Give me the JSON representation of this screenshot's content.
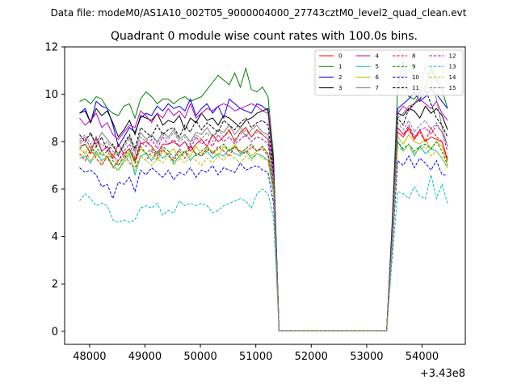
{
  "chart_data": {
    "type": "line",
    "suptitle": "Data file: modeM0/AS1A10_002T05_9000004000_27743cztM0_level2_quad_clean.evt",
    "title": "Quadrant 0 module wise count rates with 100.0s bins.",
    "xlabel": "",
    "ylabel": "",
    "x_offset_label": "+3.43e8",
    "xlim": [
      47550,
      54780
    ],
    "ylim": [
      -0.55,
      12.0
    ],
    "x_ticks": [
      48000,
      49000,
      50000,
      51000,
      52000,
      53000,
      54000
    ],
    "x_tick_labels": [
      "48000",
      "49000",
      "50000",
      "51000",
      "52000",
      "53000",
      "54000"
    ],
    "y_ticks": [
      0,
      2,
      4,
      6,
      8,
      10,
      12
    ],
    "y_tick_labels": [
      "0",
      "2",
      "4",
      "6",
      "8",
      "10",
      "12"
    ],
    "grid": false,
    "legend_position": "top-right",
    "legend_columns": 4,
    "segments": [
      {
        "x_start": 47820,
        "x_step": 100,
        "n": 37
      },
      {
        "x_start": 53360,
        "x_step": 100,
        "n": 12
      }
    ],
    "series": [
      {
        "name": "0",
        "color": "#ff0000",
        "dash": "solid",
        "seg1": [
          7.8,
          7.9,
          7.5,
          8.2,
          7.6,
          7.8,
          7.3,
          7.9,
          7.5,
          7.7,
          7.2,
          7.9,
          8.0,
          7.8,
          7.5,
          7.9,
          7.9,
          8.0,
          7.8,
          8.0,
          7.6,
          7.9,
          8.1,
          7.8,
          8.3,
          8.0,
          8.2,
          8.5,
          8.0,
          8.4,
          8.6,
          8.2,
          8.5,
          8.3,
          8.1,
          6.4,
          0.02
        ],
        "seg2": [
          0.02,
          3.9,
          8.4,
          8.2,
          8.6,
          8.1,
          8.5,
          8.0,
          8.2,
          8.1,
          8.0,
          7.2
        ]
      },
      {
        "name": "1",
        "color": "#008000",
        "dash": "solid",
        "seg1": [
          9.7,
          9.8,
          9.6,
          9.9,
          9.8,
          9.4,
          9.2,
          9.1,
          9.5,
          9.6,
          9.0,
          9.8,
          10.1,
          9.9,
          9.6,
          9.8,
          9.8,
          9.6,
          9.8,
          9.9,
          9.7,
          9.8,
          9.9,
          10.2,
          10.5,
          10.8,
          10.6,
          10.4,
          10.9,
          10.3,
          11.1,
          10.2,
          10.1,
          10.3,
          9.9,
          7.4,
          0.02
        ],
        "seg2": [
          0.02,
          4.6,
          10.3,
          11.4,
          9.9,
          9.8,
          10.1,
          10.3,
          11.1,
          10.6,
          10.2,
          9.4
        ]
      },
      {
        "name": "2",
        "color": "#0000ff",
        "dash": "solid",
        "seg1": [
          9.2,
          9.4,
          8.8,
          9.7,
          9.5,
          9.4,
          8.7,
          7.8,
          8.2,
          8.6,
          8.4,
          9.0,
          9.2,
          9.1,
          9.5,
          9.3,
          9.6,
          9.4,
          9.5,
          9.3,
          9.8,
          9.1,
          9.4,
          9.6,
          9.2,
          9.5,
          9.0,
          9.8,
          9.6,
          9.4,
          9.3,
          9.2,
          9.6,
          9.5,
          9.3,
          7.0,
          0.02
        ],
        "seg2": [
          0.02,
          4.3,
          9.4,
          9.6,
          9.8,
          10.1,
          9.7,
          9.9,
          10.2,
          10.0,
          9.7,
          9.4
        ]
      },
      {
        "name": "3",
        "color": "#000000",
        "dash": "solid",
        "seg1": [
          9.2,
          9.3,
          8.8,
          9.4,
          9.1,
          9.3,
          8.8,
          8.2,
          8.5,
          8.9,
          8.3,
          9.1,
          9.0,
          8.9,
          9.2,
          8.7,
          8.9,
          8.8,
          9.1,
          8.5,
          9.0,
          8.8,
          9.2,
          8.9,
          9.0,
          8.7,
          9.1,
          9.0,
          8.8,
          8.6,
          8.9,
          9.0,
          9.2,
          9.3,
          9.4,
          7.1,
          0.02
        ],
        "seg2": [
          0.02,
          4.3,
          9.2,
          9.1,
          9.4,
          9.3,
          9.0,
          9.5,
          9.2,
          9.4,
          9.1,
          8.5
        ]
      },
      {
        "name": "4",
        "color": "#bf00bf",
        "dash": "solid",
        "seg1": [
          9.0,
          8.7,
          8.9,
          9.2,
          8.6,
          8.8,
          8.3,
          8.1,
          8.4,
          8.7,
          8.6,
          9.3,
          9.1,
          8.8,
          9.2,
          9.0,
          9.4,
          9.1,
          9.3,
          9.0,
          9.6,
          9.0,
          9.2,
          9.4,
          9.3,
          9.5,
          9.6,
          9.5,
          9.3,
          9.4,
          9.5,
          9.6,
          9.5,
          9.3,
          9.2,
          6.9,
          0.02
        ],
        "seg2": [
          0.02,
          4.2,
          9.2,
          9.5,
          9.3,
          9.6,
          9.8,
          9.6,
          9.4,
          9.7,
          9.2,
          8.9
        ]
      },
      {
        "name": "5",
        "color": "#00bfa0",
        "dash": "solid",
        "seg1": [
          7.3,
          7.4,
          7.1,
          7.6,
          7.2,
          7.4,
          7.0,
          6.8,
          7.2,
          7.5,
          6.6,
          7.4,
          7.5,
          7.2,
          7.6,
          7.3,
          7.5,
          7.1,
          7.4,
          7.6,
          7.2,
          7.5,
          7.4,
          7.6,
          7.3,
          7.5,
          7.4,
          7.7,
          7.5,
          7.4,
          7.6,
          7.3,
          7.5,
          7.4,
          7.2,
          5.8,
          0.02
        ],
        "seg2": [
          0.02,
          3.6,
          8.0,
          7.6,
          7.9,
          7.4,
          7.8,
          7.5,
          7.7,
          7.6,
          7.3,
          6.9
        ]
      },
      {
        "name": "6",
        "color": "#bfbf00",
        "dash": "solid",
        "seg1": [
          7.7,
          7.5,
          7.9,
          7.4,
          7.6,
          7.3,
          7.5,
          7.0,
          7.3,
          7.6,
          7.1,
          7.7,
          7.5,
          7.4,
          7.2,
          7.6,
          7.5,
          7.7,
          7.3,
          7.6,
          7.4,
          7.8,
          7.5,
          7.7,
          7.6,
          7.4,
          7.8,
          7.6,
          7.9,
          7.5,
          7.7,
          7.4,
          7.6,
          7.8,
          7.5,
          6.0,
          0.02
        ],
        "seg2": [
          0.02,
          3.7,
          8.2,
          7.9,
          8.3,
          8.0,
          7.9,
          8.1,
          7.7,
          8.0,
          7.8,
          7.1
        ]
      },
      {
        "name": "7",
        "color": "#808080",
        "dash": "solid",
        "seg1": [
          7.9,
          8.1,
          8.3,
          7.9,
          8.4,
          8.1,
          7.8,
          7.5,
          7.9,
          8.2,
          7.6,
          8.4,
          8.1,
          8.3,
          8.0,
          8.4,
          8.2,
          8.5,
          8.1,
          8.3,
          8.0,
          8.4,
          8.3,
          8.6,
          8.2,
          8.5,
          8.4,
          8.7,
          8.3,
          8.6,
          8.2,
          8.5,
          8.7,
          8.4,
          8.3,
          6.6,
          0.02
        ],
        "seg2": [
          0.02,
          3.9,
          9.0,
          9.2,
          9.5,
          9.6,
          10.0,
          11.2,
          10.5,
          9.8,
          8.6,
          7.8
        ]
      },
      {
        "name": "8",
        "color": "#ff0000",
        "dash": "dashed",
        "seg1": [
          7.5,
          7.2,
          7.7,
          7.3,
          7.0,
          7.4,
          6.9,
          7.2,
          7.5,
          7.1,
          6.9,
          7.4,
          7.2,
          7.6,
          7.3,
          7.7,
          7.4,
          7.2,
          7.6,
          7.3,
          7.8,
          7.5,
          7.4,
          7.7,
          7.5,
          7.8,
          7.6,
          7.4,
          7.8,
          7.6,
          7.5,
          7.8,
          7.6,
          7.7,
          7.4,
          6.0,
          0.02
        ],
        "seg2": [
          0.02,
          3.7,
          8.6,
          8.3,
          8.5,
          8.1,
          8.4,
          8.0,
          8.6,
          8.2,
          8.0,
          7.3
        ]
      },
      {
        "name": "9",
        "color": "#008000",
        "dash": "dashed",
        "seg1": [
          7.7,
          7.9,
          7.5,
          7.8,
          7.4,
          7.6,
          7.2,
          7.0,
          7.4,
          7.7,
          7.1,
          7.8,
          7.5,
          7.7,
          7.4,
          7.8,
          7.6,
          7.3,
          7.7,
          7.5,
          7.9,
          7.4,
          7.6,
          7.8,
          7.5,
          7.7,
          7.9,
          7.6,
          7.8,
          7.5,
          7.7,
          7.9,
          7.6,
          7.8,
          7.5,
          6.1,
          0.02
        ],
        "seg2": [
          0.02,
          3.7,
          8.0,
          7.7,
          7.9,
          7.6,
          7.8,
          7.9,
          7.7,
          8.0,
          7.6,
          7.0
        ]
      },
      {
        "name": "10",
        "color": "#0000ff",
        "dash": "dashed",
        "seg1": [
          6.9,
          6.7,
          6.8,
          6.6,
          6.1,
          6.2,
          5.6,
          6.3,
          6.2,
          6.5,
          5.9,
          6.8,
          6.6,
          6.9,
          6.7,
          6.5,
          6.8,
          6.4,
          6.7,
          6.6,
          6.9,
          6.5,
          6.8,
          6.7,
          7.0,
          6.6,
          6.9,
          6.8,
          6.7,
          7.1,
          6.8,
          6.9,
          7.0,
          6.8,
          6.7,
          5.4,
          0.02
        ],
        "seg2": [
          0.02,
          3.4,
          7.2,
          7.0,
          7.4,
          6.9,
          7.3,
          7.1,
          6.8,
          7.2,
          6.6,
          6.6
        ]
      },
      {
        "name": "11",
        "color": "#000000",
        "dash": "dashed",
        "seg1": [
          8.3,
          8.0,
          8.4,
          7.8,
          8.2,
          7.6,
          7.9,
          7.4,
          7.9,
          8.3,
          7.7,
          8.6,
          8.4,
          8.2,
          8.7,
          8.3,
          8.5,
          8.6,
          8.2,
          8.7,
          8.4,
          8.9,
          8.5,
          8.8,
          8.6,
          8.4,
          8.9,
          8.7,
          8.5,
          8.8,
          9.0,
          8.6,
          8.8,
          8.9,
          8.7,
          6.7,
          0.02
        ],
        "seg2": [
          0.02,
          4.0,
          9.0,
          8.7,
          9.4,
          9.6,
          9.8,
          10.2,
          9.6,
          9.0,
          8.7,
          8.2
        ]
      },
      {
        "name": "12",
        "color": "#bf00bf",
        "dash": "dashed",
        "seg1": [
          8.0,
          8.2,
          7.7,
          8.1,
          7.6,
          7.8,
          7.4,
          7.2,
          7.6,
          7.9,
          7.3,
          8.0,
          7.8,
          8.1,
          7.7,
          8.2,
          7.9,
          8.1,
          7.8,
          8.0,
          7.7,
          8.2,
          7.9,
          8.1,
          7.8,
          8.3,
          8.0,
          8.2,
          7.9,
          8.1,
          8.3,
          8.0,
          8.2,
          8.1,
          7.9,
          6.3,
          0.02
        ],
        "seg2": [
          0.02,
          3.8,
          8.6,
          8.3,
          8.7,
          8.2,
          8.5,
          8.6,
          8.3,
          8.7,
          8.4,
          7.6
        ]
      },
      {
        "name": "13",
        "color": "#00bfbf",
        "dash": "dashed",
        "seg1": [
          5.5,
          5.8,
          5.6,
          5.3,
          5.4,
          5.3,
          4.7,
          4.6,
          4.7,
          4.6,
          4.7,
          5.2,
          5.3,
          5.2,
          5.4,
          4.9,
          5.1,
          5.0,
          5.5,
          5.3,
          5.4,
          5.3,
          5.4,
          5.3,
          5.0,
          5.1,
          5.3,
          5.4,
          5.5,
          5.6,
          5.5,
          5.2,
          5.8,
          6.0,
          5.8,
          4.8,
          0.02
        ],
        "seg2": [
          0.02,
          3.0,
          5.9,
          5.8,
          5.6,
          6.1,
          5.7,
          5.6,
          6.6,
          5.6,
          6.2,
          5.4
        ]
      },
      {
        "name": "14",
        "color": "#bfbf00",
        "dash": "dashed",
        "seg1": [
          7.4,
          7.6,
          7.2,
          7.5,
          7.1,
          7.3,
          6.9,
          6.8,
          7.1,
          7.4,
          6.8,
          7.4,
          7.2,
          7.0,
          7.3,
          7.1,
          7.4,
          7.0,
          7.3,
          7.1,
          7.4,
          7.2,
          7.0,
          7.3,
          7.1,
          7.4,
          7.2,
          7.5,
          7.3,
          7.1,
          7.4,
          7.2,
          7.5,
          7.3,
          7.2,
          5.9,
          0.02
        ],
        "seg2": [
          0.02,
          3.6,
          7.8,
          7.6,
          7.9,
          7.5,
          7.7,
          7.8,
          7.4,
          7.6,
          7.3,
          6.9
        ]
      },
      {
        "name": "15",
        "color": "#808080",
        "dash": "dashed",
        "seg1": [
          8.1,
          8.3,
          7.9,
          8.2,
          7.8,
          8.0,
          7.6,
          7.4,
          7.8,
          8.1,
          7.5,
          8.2,
          8.0,
          8.3,
          7.9,
          8.3,
          8.1,
          8.4,
          8.0,
          8.2,
          7.9,
          8.3,
          8.1,
          8.4,
          8.0,
          8.5,
          8.2,
          8.4,
          8.1,
          8.3,
          8.5,
          8.2,
          8.4,
          8.3,
          8.1,
          6.5,
          0.02
        ],
        "seg2": [
          0.02,
          3.9,
          8.8,
          8.5,
          8.9,
          8.4,
          8.7,
          8.9,
          8.5,
          8.8,
          8.4,
          7.8
        ]
      }
    ]
  }
}
